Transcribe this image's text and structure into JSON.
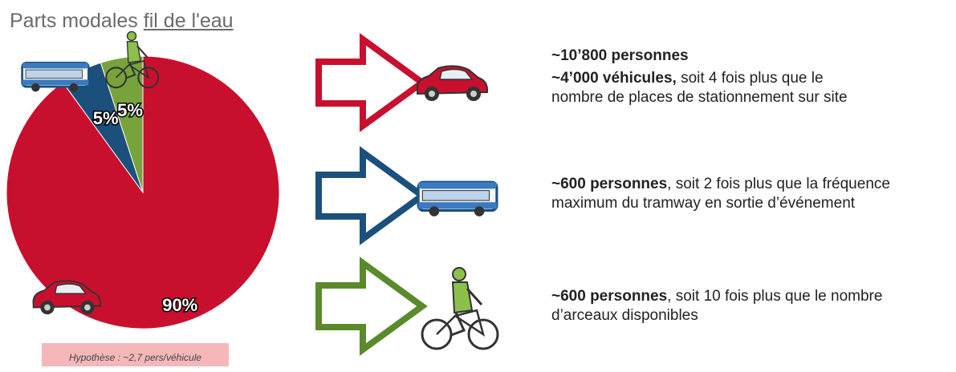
{
  "chart_data": {
    "type": "pie",
    "title_parts": [
      "Parts modales",
      "fil de l'eau"
    ],
    "categories": [
      null,
      null,
      null
    ],
    "values": [
      90,
      5,
      5
    ],
    "value_labels": [
      "90%",
      "5%",
      "5%"
    ],
    "colors": [
      "#c8102e",
      "#1b4f7c",
      "#78a33b"
    ]
  },
  "rows": [
    {
      "lines": [
        {
          "bold": "~10’800 personnes",
          "text": ""
        },
        {
          "bold": "~4’000 véhicules,",
          "text": " soit 4 fois plus que le nombre de places de stationnement sur site"
        }
      ]
    },
    {
      "lines": [
        {
          "bold": "~600 personnes",
          "text": ", soit 2 fois plus que la fréquence maximum du tramway en sortie d’événement"
        }
      ]
    },
    {
      "lines": [
        {
          "bold": "~600 personnes",
          "text": ", soit 10 fois plus que le nombre d’arceaux disponibles"
        }
      ]
    }
  ],
  "note": "Hypothèse : ~2,7 pers/véhicule"
}
